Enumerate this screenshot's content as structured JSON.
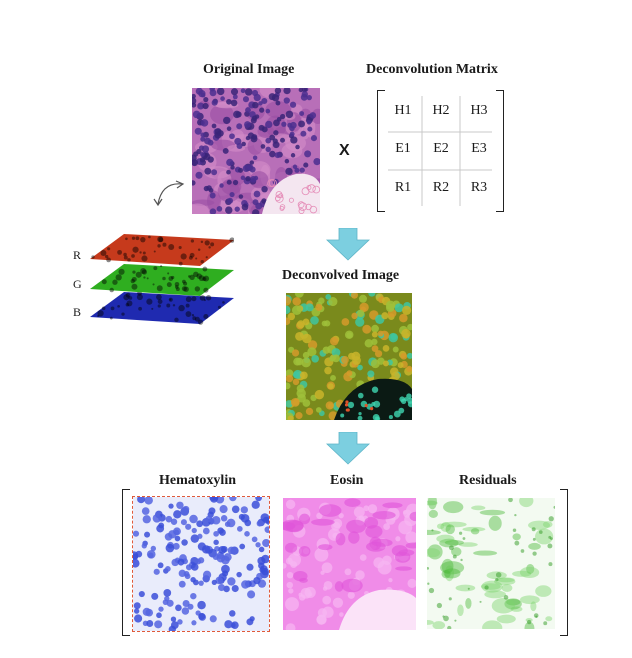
{
  "original": {
    "title": "Original Image"
  },
  "matrix": {
    "title": "Deconvolution Matrix",
    "operator": "X",
    "rows": [
      [
        "H1",
        "H2",
        "H3"
      ],
      [
        "E1",
        "E2",
        "E3"
      ],
      [
        "R1",
        "R2",
        "R3"
      ]
    ]
  },
  "channels": {
    "labels": [
      "R",
      "G",
      "B"
    ],
    "colors": [
      "#c63a1c",
      "#2fae20",
      "#1f2ab0"
    ]
  },
  "deconvolved": {
    "title": "Deconvolved Image"
  },
  "outputs": [
    {
      "title": "Hematoxylin",
      "color": "#3b4fd8"
    },
    {
      "title": "Eosin",
      "color": "#e64fe0"
    },
    {
      "title": "Residuals",
      "color": "#4dbb3c"
    }
  ],
  "arrow_color": "#7ccfe0"
}
